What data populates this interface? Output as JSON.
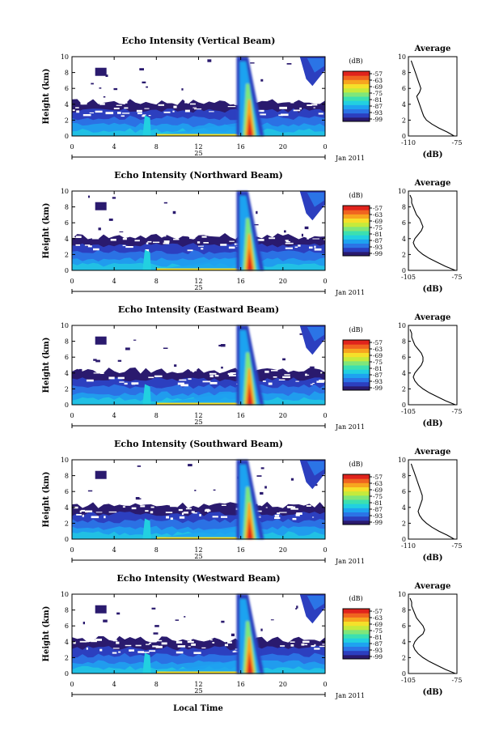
{
  "figure": {
    "xlabel_bottom": "Local Time"
  },
  "colorbar": {
    "unit": "(dB)",
    "ticks": [
      "-57",
      "-63",
      "-69",
      "-75",
      "-81",
      "-87",
      "-93",
      "-99"
    ],
    "colors": [
      "#2a1a6e",
      "#2c3fbf",
      "#2b74e6",
      "#1ea3f0",
      "#22d0e0",
      "#3ce0b0",
      "#7fe67a",
      "#c5ea3c",
      "#f5e02a",
      "#f7a51f",
      "#f06420",
      "#e0231c"
    ]
  },
  "chart_data": [
    {
      "type": "heatmap",
      "title": "Echo Intensity (Vertical Beam)",
      "ylabel": "Height (km)",
      "xlabel": "",
      "x_ticks": [
        "0",
        "4",
        "8",
        "12",
        "16",
        "20",
        "0"
      ],
      "y_ticks": [
        "0",
        "2",
        "4",
        "6",
        "8",
        "10"
      ],
      "xlim": [
        0,
        24
      ],
      "ylim": [
        0,
        10
      ],
      "date_day": "25",
      "date_label": "Jan 2011",
      "colorbar_unit": "(dB)",
      "colorbar_range": [
        -99,
        -57
      ],
      "profile": {
        "title": "Average",
        "xlabel": "(dB)",
        "x_ticks": [
          "-110",
          "-75"
        ],
        "xlim": [
          -110,
          -75
        ],
        "y_ticks": [
          "0",
          "2",
          "4",
          "6",
          "8",
          "10"
        ],
        "heights": [
          0,
          0.5,
          1,
          1.5,
          2,
          2.5,
          3,
          3.5,
          4,
          4.5,
          5,
          5.5,
          6,
          6.5,
          7,
          7.5,
          8,
          8.5,
          9,
          9.5
        ],
        "values": [
          -77,
          -82,
          -88,
          -93,
          -97,
          -99,
          -100,
          -101,
          -102,
          -103,
          -104,
          -102,
          -101,
          -102,
          -103,
          -104,
          -105,
          -106,
          -107,
          -108
        ]
      }
    },
    {
      "type": "heatmap",
      "title": "Echo Intensity (Northward Beam)",
      "ylabel": "Height (km)",
      "xlabel": "",
      "x_ticks": [
        "0",
        "4",
        "8",
        "12",
        "16",
        "20",
        "0"
      ],
      "y_ticks": [
        "0",
        "2",
        "4",
        "6",
        "8",
        "10"
      ],
      "xlim": [
        0,
        24
      ],
      "ylim": [
        0,
        10
      ],
      "date_day": "25",
      "date_label": "Jan 2011",
      "colorbar_unit": "(dB)",
      "colorbar_range": [
        -99,
        -57
      ],
      "profile": {
        "title": "Average",
        "xlabel": "(dB)",
        "x_ticks": [
          "-105",
          "-75"
        ],
        "xlim": [
          -105,
          -75
        ],
        "y_ticks": [
          "0",
          "2",
          "4",
          "6",
          "8",
          "10"
        ],
        "heights": [
          0,
          0.5,
          1,
          1.5,
          2,
          2.5,
          3,
          3.5,
          4,
          4.5,
          5,
          5.5,
          6,
          6.5,
          7,
          7.5,
          8,
          8.5,
          9,
          9.5
        ],
        "values": [
          -76,
          -82,
          -87,
          -92,
          -96,
          -99,
          -101,
          -102,
          -101,
          -99,
          -97,
          -96,
          -97,
          -98,
          -100,
          -101,
          -102,
          -103,
          -103,
          -104
        ]
      }
    },
    {
      "type": "heatmap",
      "title": "Echo Intensity (Eastward Beam)",
      "ylabel": "Height (km)",
      "xlabel": "",
      "x_ticks": [
        "0",
        "4",
        "8",
        "12",
        "16",
        "20",
        "0"
      ],
      "y_ticks": [
        "0",
        "2",
        "4",
        "6",
        "8",
        "10"
      ],
      "xlim": [
        0,
        24
      ],
      "ylim": [
        0,
        10
      ],
      "date_day": "25",
      "date_label": "Jan 2011",
      "colorbar_unit": "(dB)",
      "colorbar_range": [
        -99,
        -57
      ],
      "profile": {
        "title": "Average",
        "xlabel": "(dB)",
        "x_ticks": [
          "-105",
          "-75"
        ],
        "xlim": [
          -105,
          -75
        ],
        "y_ticks": [
          "0",
          "2",
          "4",
          "6",
          "8",
          "10"
        ],
        "heights": [
          0,
          0.5,
          1,
          1.5,
          2,
          2.5,
          3,
          3.5,
          4,
          4.5,
          5,
          5.5,
          6,
          6.5,
          7,
          7.5,
          8,
          8.5,
          9,
          9.5
        ],
        "values": [
          -76,
          -82,
          -87,
          -92,
          -96,
          -99,
          -101,
          -102,
          -101,
          -99,
          -97,
          -96,
          -96,
          -97,
          -99,
          -101,
          -102,
          -103,
          -103,
          -104
        ]
      }
    },
    {
      "type": "heatmap",
      "title": "Echo Intensity (Southward Beam)",
      "ylabel": "Height (km)",
      "xlabel": "",
      "x_ticks": [
        "0",
        "4",
        "8",
        "12",
        "16",
        "20",
        "0"
      ],
      "y_ticks": [
        "0",
        "2",
        "4",
        "6",
        "8",
        "10"
      ],
      "xlim": [
        0,
        24
      ],
      "ylim": [
        0,
        10
      ],
      "date_day": "25",
      "date_label": "Jan 2011",
      "colorbar_unit": "(dB)",
      "colorbar_range": [
        -99,
        -57
      ],
      "profile": {
        "title": "Average",
        "xlabel": "(dB)",
        "x_ticks": [
          "-110",
          "-75"
        ],
        "xlim": [
          -110,
          -75
        ],
        "y_ticks": [
          "0",
          "2",
          "4",
          "6",
          "8",
          "10"
        ],
        "heights": [
          0,
          0.5,
          1,
          1.5,
          2,
          2.5,
          3,
          3.5,
          4,
          4.5,
          5,
          5.5,
          6,
          6.5,
          7,
          7.5,
          8,
          8.5,
          9,
          9.5
        ],
        "values": [
          -77,
          -82,
          -88,
          -93,
          -97,
          -100,
          -102,
          -103,
          -102,
          -101,
          -100,
          -100,
          -101,
          -102,
          -103,
          -104,
          -105,
          -106,
          -107,
          -108
        ]
      }
    },
    {
      "type": "heatmap",
      "title": "Echo Intensity (Westward Beam)",
      "ylabel": "Height (km)",
      "xlabel": "",
      "x_ticks": [
        "0",
        "4",
        "8",
        "12",
        "16",
        "20",
        "0"
      ],
      "y_ticks": [
        "0",
        "2",
        "4",
        "6",
        "8",
        "10"
      ],
      "xlim": [
        0,
        24
      ],
      "ylim": [
        0,
        10
      ],
      "date_day": "25",
      "date_label": "Jan 2011",
      "colorbar_unit": "(dB)",
      "colorbar_range": [
        -99,
        -57
      ],
      "profile": {
        "title": "Average",
        "xlabel": "(dB)",
        "x_ticks": [
          "-105",
          "-75"
        ],
        "xlim": [
          -105,
          -75
        ],
        "y_ticks": [
          "0",
          "2",
          "4",
          "6",
          "8",
          "10"
        ],
        "heights": [
          0,
          0.5,
          1,
          1.5,
          2,
          2.5,
          3,
          3.5,
          4,
          4.5,
          5,
          5.5,
          6,
          6.5,
          7,
          7.5,
          8,
          8.5,
          9,
          9.5
        ],
        "values": [
          -76,
          -82,
          -87,
          -92,
          -96,
          -99,
          -101,
          -102,
          -101,
          -99,
          -96,
          -95,
          -96,
          -98,
          -100,
          -101,
          -102,
          -103,
          -103,
          -104
        ]
      }
    }
  ]
}
